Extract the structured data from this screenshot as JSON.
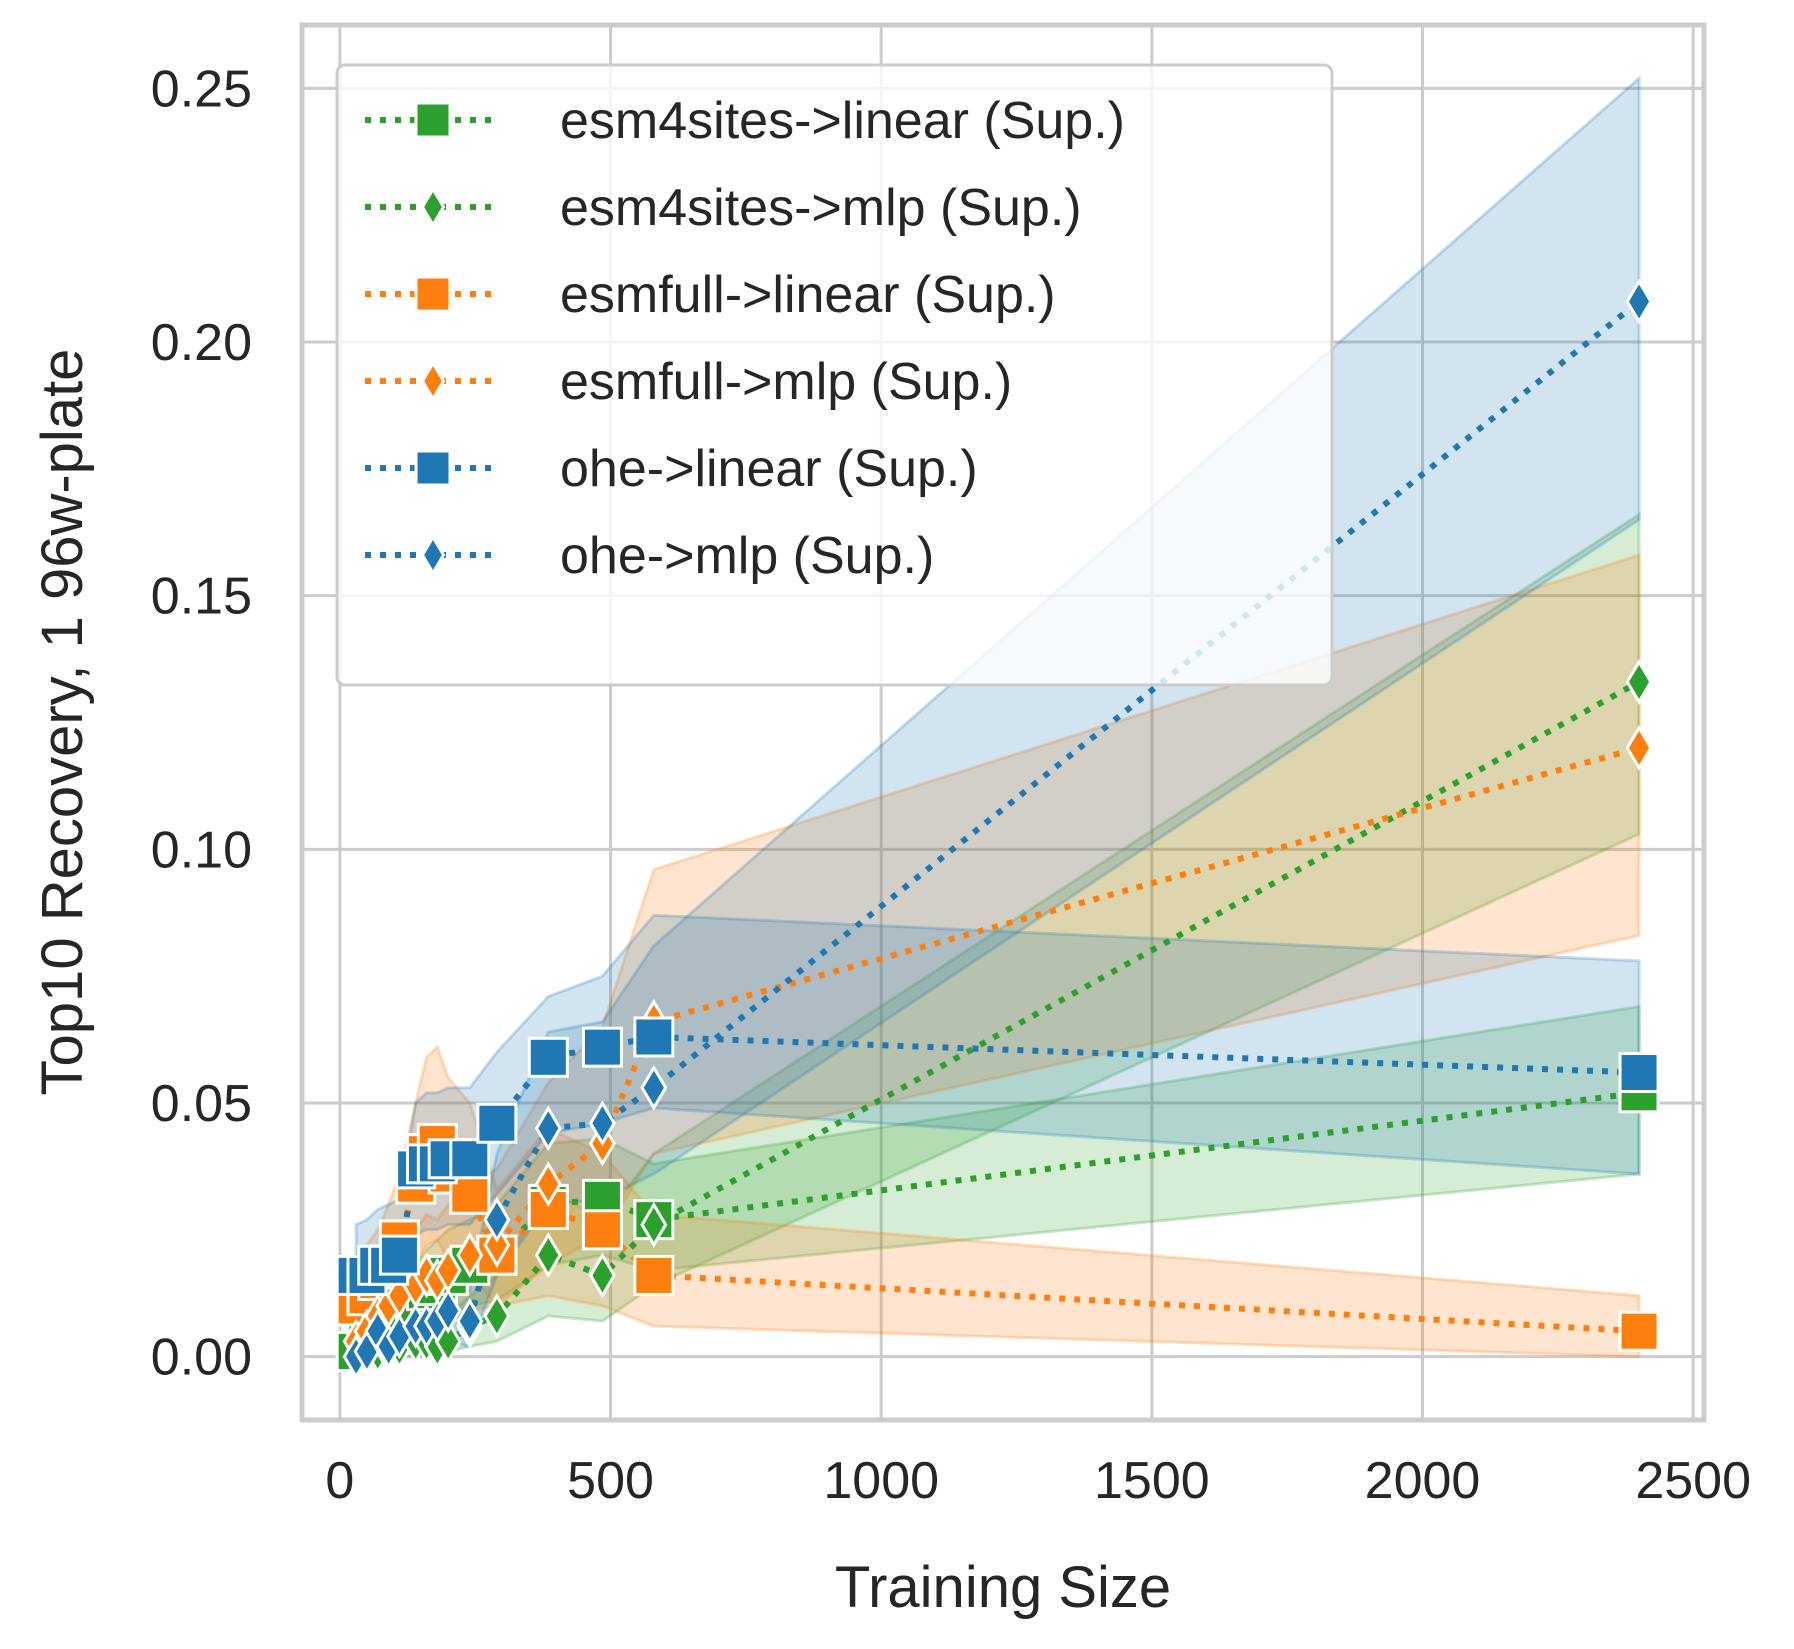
{
  "chart_data": {
    "type": "line",
    "xlabel": "Training Size",
    "ylabel": "Top10 Recovery, 1 96w-plate",
    "xlim": [
      -70,
      2520
    ],
    "ylim": [
      -0.0125,
      0.2625
    ],
    "xticks": [
      0,
      500,
      1000,
      1500,
      2000,
      2500
    ],
    "yticks": [
      0.0,
      0.05,
      0.1,
      0.15,
      0.2,
      0.25
    ],
    "xtick_labels": [
      "0",
      "500",
      "1000",
      "1500",
      "2000",
      "2500"
    ],
    "ytick_labels": [
      "0.00",
      "0.05",
      "0.10",
      "0.15",
      "0.20",
      "0.25"
    ],
    "grid": true,
    "legend_position": "top-left",
    "series": [
      {
        "name": "esm4sites->linear (Sup.)",
        "color": "#2ca02c",
        "marker": "square",
        "x": [
          30,
          50,
          70,
          90,
          110,
          140,
          160,
          180,
          200,
          240,
          290,
          385,
          485,
          580,
          2400
        ],
        "y": [
          0.001,
          0.003,
          0.005,
          0.006,
          0.008,
          0.01,
          0.013,
          0.014,
          0.016,
          0.018,
          0.02,
          0.03,
          0.031,
          0.027,
          0.052
        ],
        "lower": [
          0.0,
          0.0,
          0.0,
          0.001,
          0.002,
          0.004,
          0.006,
          0.006,
          0.008,
          0.01,
          0.011,
          0.018,
          0.02,
          0.017,
          0.036
        ],
        "upper": [
          0.003,
          0.007,
          0.01,
          0.012,
          0.015,
          0.018,
          0.021,
          0.023,
          0.025,
          0.027,
          0.03,
          0.042,
          0.043,
          0.038,
          0.069
        ]
      },
      {
        "name": "esm4sites->mlp (Sup.)",
        "color": "#2ca02c",
        "marker": "diamond",
        "x": [
          30,
          50,
          70,
          90,
          110,
          140,
          160,
          180,
          200,
          240,
          290,
          385,
          485,
          580,
          2400
        ],
        "y": [
          0.0,
          0.0,
          0.001,
          0.001,
          0.002,
          0.003,
          0.003,
          0.002,
          0.003,
          0.006,
          0.008,
          0.02,
          0.016,
          0.026,
          0.133
        ],
        "lower": [
          0.0,
          0.0,
          0.0,
          0.0,
          0.0,
          0.0,
          0.0,
          0.0,
          0.001,
          0.002,
          0.003,
          0.008,
          0.007,
          0.014,
          0.103
        ],
        "upper": [
          0.001,
          0.002,
          0.003,
          0.004,
          0.005,
          0.006,
          0.007,
          0.006,
          0.008,
          0.012,
          0.016,
          0.033,
          0.027,
          0.04,
          0.166
        ]
      },
      {
        "name": "esmfull->linear (Sup.)",
        "color": "#ff7f0e",
        "marker": "square",
        "x": [
          30,
          50,
          70,
          90,
          110,
          140,
          160,
          180,
          200,
          240,
          290,
          385,
          485,
          580,
          2400
        ],
        "y": [
          0.01,
          0.012,
          0.015,
          0.018,
          0.023,
          0.034,
          0.04,
          0.042,
          0.036,
          0.032,
          0.02,
          0.029,
          0.025,
          0.016,
          0.005
        ],
        "lower": [
          0.002,
          0.004,
          0.006,
          0.008,
          0.012,
          0.018,
          0.022,
          0.023,
          0.019,
          0.016,
          0.01,
          0.012,
          0.01,
          0.006,
          0.0
        ],
        "upper": [
          0.02,
          0.022,
          0.025,
          0.03,
          0.036,
          0.05,
          0.059,
          0.061,
          0.055,
          0.05,
          0.033,
          0.045,
          0.04,
          0.028,
          0.012
        ]
      },
      {
        "name": "esmfull->mlp (Sup.)",
        "color": "#ff7f0e",
        "marker": "diamond",
        "x": [
          30,
          50,
          70,
          90,
          110,
          140,
          160,
          180,
          200,
          240,
          290,
          385,
          485,
          580,
          2400
        ],
        "y": [
          0.003,
          0.005,
          0.008,
          0.01,
          0.012,
          0.014,
          0.016,
          0.015,
          0.017,
          0.02,
          0.022,
          0.034,
          0.042,
          0.066,
          0.12
        ],
        "lower": [
          0.0,
          0.001,
          0.002,
          0.003,
          0.004,
          0.005,
          0.006,
          0.006,
          0.007,
          0.009,
          0.01,
          0.018,
          0.024,
          0.04,
          0.083
        ],
        "upper": [
          0.008,
          0.012,
          0.016,
          0.019,
          0.022,
          0.025,
          0.028,
          0.027,
          0.03,
          0.034,
          0.037,
          0.054,
          0.065,
          0.096,
          0.158
        ]
      },
      {
        "name": "ohe->linear (Sup.)",
        "color": "#1f77b4",
        "marker": "square",
        "x": [
          30,
          50,
          70,
          90,
          110,
          140,
          160,
          180,
          200,
          240,
          290,
          385,
          485,
          580,
          2400
        ],
        "y": [
          0.016,
          0.016,
          0.018,
          0.018,
          0.02,
          0.037,
          0.038,
          0.038,
          0.039,
          0.039,
          0.046,
          0.059,
          0.061,
          0.063,
          0.056
        ],
        "lower": [
          0.008,
          0.008,
          0.01,
          0.01,
          0.011,
          0.024,
          0.025,
          0.025,
          0.026,
          0.026,
          0.032,
          0.044,
          0.046,
          0.049,
          0.036
        ],
        "upper": [
          0.026,
          0.027,
          0.029,
          0.03,
          0.031,
          0.05,
          0.052,
          0.052,
          0.053,
          0.053,
          0.06,
          0.071,
          0.075,
          0.087,
          0.078
        ]
      },
      {
        "name": "ohe->mlp (Sup.)",
        "color": "#1f77b4",
        "marker": "diamond",
        "x": [
          30,
          50,
          70,
          90,
          110,
          140,
          160,
          180,
          200,
          240,
          290,
          385,
          485,
          580,
          2400
        ],
        "y": [
          0.0,
          0.001,
          0.005,
          0.002,
          0.004,
          0.006,
          0.006,
          0.007,
          0.009,
          0.007,
          0.027,
          0.045,
          0.046,
          0.053,
          0.208
        ],
        "lower": [
          0.0,
          0.0,
          0.001,
          0.0,
          0.001,
          0.002,
          0.002,
          0.002,
          0.003,
          0.002,
          0.016,
          0.03,
          0.031,
          0.036,
          0.165
        ],
        "upper": [
          0.002,
          0.004,
          0.011,
          0.006,
          0.009,
          0.012,
          0.012,
          0.013,
          0.016,
          0.013,
          0.04,
          0.064,
          0.066,
          0.081,
          0.252
        ]
      }
    ]
  }
}
